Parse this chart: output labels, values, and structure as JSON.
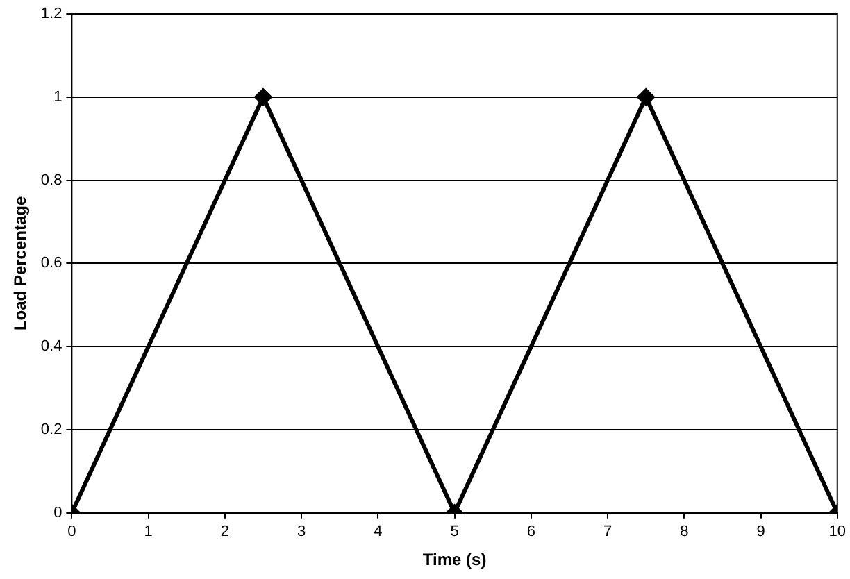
{
  "chart_data": {
    "type": "line",
    "xlabel": "Time (s)",
    "ylabel": "Load Percentage",
    "x": [
      0,
      2.5,
      5,
      7.5,
      10
    ],
    "series": [
      {
        "color": "#000000",
        "values": [
          0,
          1,
          0,
          1,
          0
        ]
      }
    ],
    "xlim": [
      0,
      10
    ],
    "xticks": [
      0,
      1,
      2,
      3,
      4,
      5,
      6,
      7,
      8,
      9,
      10
    ],
    "ylim": [
      0,
      1.2
    ],
    "yticks": [
      0,
      0.2,
      0.4,
      0.6,
      0.8,
      1,
      1.2
    ],
    "grid": "y",
    "marker": "diamond",
    "line_style": "solid"
  }
}
